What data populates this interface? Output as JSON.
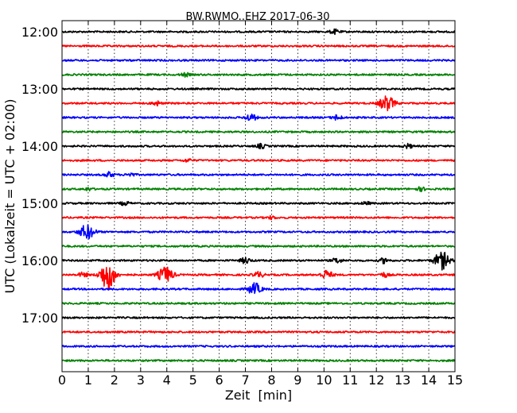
{
  "chart_data": {
    "type": "line",
    "title": "BW.RWMO..EHZ 2017-06-30",
    "xlabel": "Zeit  [min]",
    "ylabel": "UTC (Lokalzeit = UTC + 02:00)",
    "xlim": [
      0,
      15
    ],
    "x_ticks": [
      "0",
      "1",
      "2",
      "3",
      "4",
      "5",
      "6",
      "7",
      "8",
      "9",
      "10",
      "11",
      "12",
      "13",
      "14",
      "15"
    ],
    "y_ticks": [
      "12:00",
      "13:00",
      "14:00",
      "15:00",
      "16:00",
      "17:00"
    ],
    "grid": "vertical dotted",
    "trace_interval_minutes": 15,
    "color_cycle": [
      "#000000",
      "#ff0000",
      "#0000ff",
      "#008000"
    ],
    "traces": [
      {
        "start": "12:00",
        "events": [
          {
            "t": 10.4,
            "amp": 0.3
          }
        ]
      },
      {
        "start": "12:15",
        "events": []
      },
      {
        "start": "12:30",
        "events": []
      },
      {
        "start": "12:45",
        "events": [
          {
            "t": 4.7,
            "amp": 0.25
          }
        ]
      },
      {
        "start": "13:00",
        "events": []
      },
      {
        "start": "13:15",
        "events": [
          {
            "t": 3.6,
            "amp": 0.3
          },
          {
            "t": 12.4,
            "amp": 1.0
          }
        ]
      },
      {
        "start": "13:30",
        "events": [
          {
            "t": 7.2,
            "amp": 0.5
          },
          {
            "t": 10.5,
            "amp": 0.35
          }
        ]
      },
      {
        "start": "13:45",
        "events": []
      },
      {
        "start": "14:00",
        "events": [
          {
            "t": 7.6,
            "amp": 0.3
          },
          {
            "t": 13.2,
            "amp": 0.3
          }
        ]
      },
      {
        "start": "14:15",
        "events": [
          {
            "t": 4.8,
            "amp": 0.2
          }
        ]
      },
      {
        "start": "14:30",
        "events": [
          {
            "t": 1.8,
            "amp": 0.35
          },
          {
            "t": 2.6,
            "amp": 0.25
          }
        ]
      },
      {
        "start": "14:45",
        "events": [
          {
            "t": 1.0,
            "amp": 0.2
          },
          {
            "t": 13.7,
            "amp": 0.25
          }
        ]
      },
      {
        "start": "15:00",
        "events": [
          {
            "t": 2.4,
            "amp": 0.25
          },
          {
            "t": 11.6,
            "amp": 0.2
          }
        ]
      },
      {
        "start": "15:15",
        "events": [
          {
            "t": 8.0,
            "amp": 0.2
          }
        ]
      },
      {
        "start": "15:30",
        "events": [
          {
            "t": 0.95,
            "amp": 1.0
          }
        ]
      },
      {
        "start": "15:45",
        "events": []
      },
      {
        "start": "16:00",
        "events": [
          {
            "t": 7.0,
            "amp": 0.4
          },
          {
            "t": 10.5,
            "amp": 0.35
          },
          {
            "t": 12.3,
            "amp": 0.35
          },
          {
            "t": 14.5,
            "amp": 1.2
          }
        ]
      },
      {
        "start": "16:15",
        "events": [
          {
            "t": 0.8,
            "amp": 0.3
          },
          {
            "t": 1.75,
            "amp": 2.2
          },
          {
            "t": 3.95,
            "amp": 1.1
          },
          {
            "t": 7.5,
            "amp": 0.4
          },
          {
            "t": 10.1,
            "amp": 0.6
          },
          {
            "t": 12.3,
            "amp": 0.3
          }
        ]
      },
      {
        "start": "16:30",
        "events": [
          {
            "t": 7.35,
            "amp": 0.8
          }
        ]
      },
      {
        "start": "16:45",
        "events": []
      },
      {
        "start": "17:00",
        "events": []
      },
      {
        "start": "17:15",
        "events": []
      },
      {
        "start": "17:30",
        "events": []
      },
      {
        "start": "17:45",
        "events": []
      }
    ]
  }
}
